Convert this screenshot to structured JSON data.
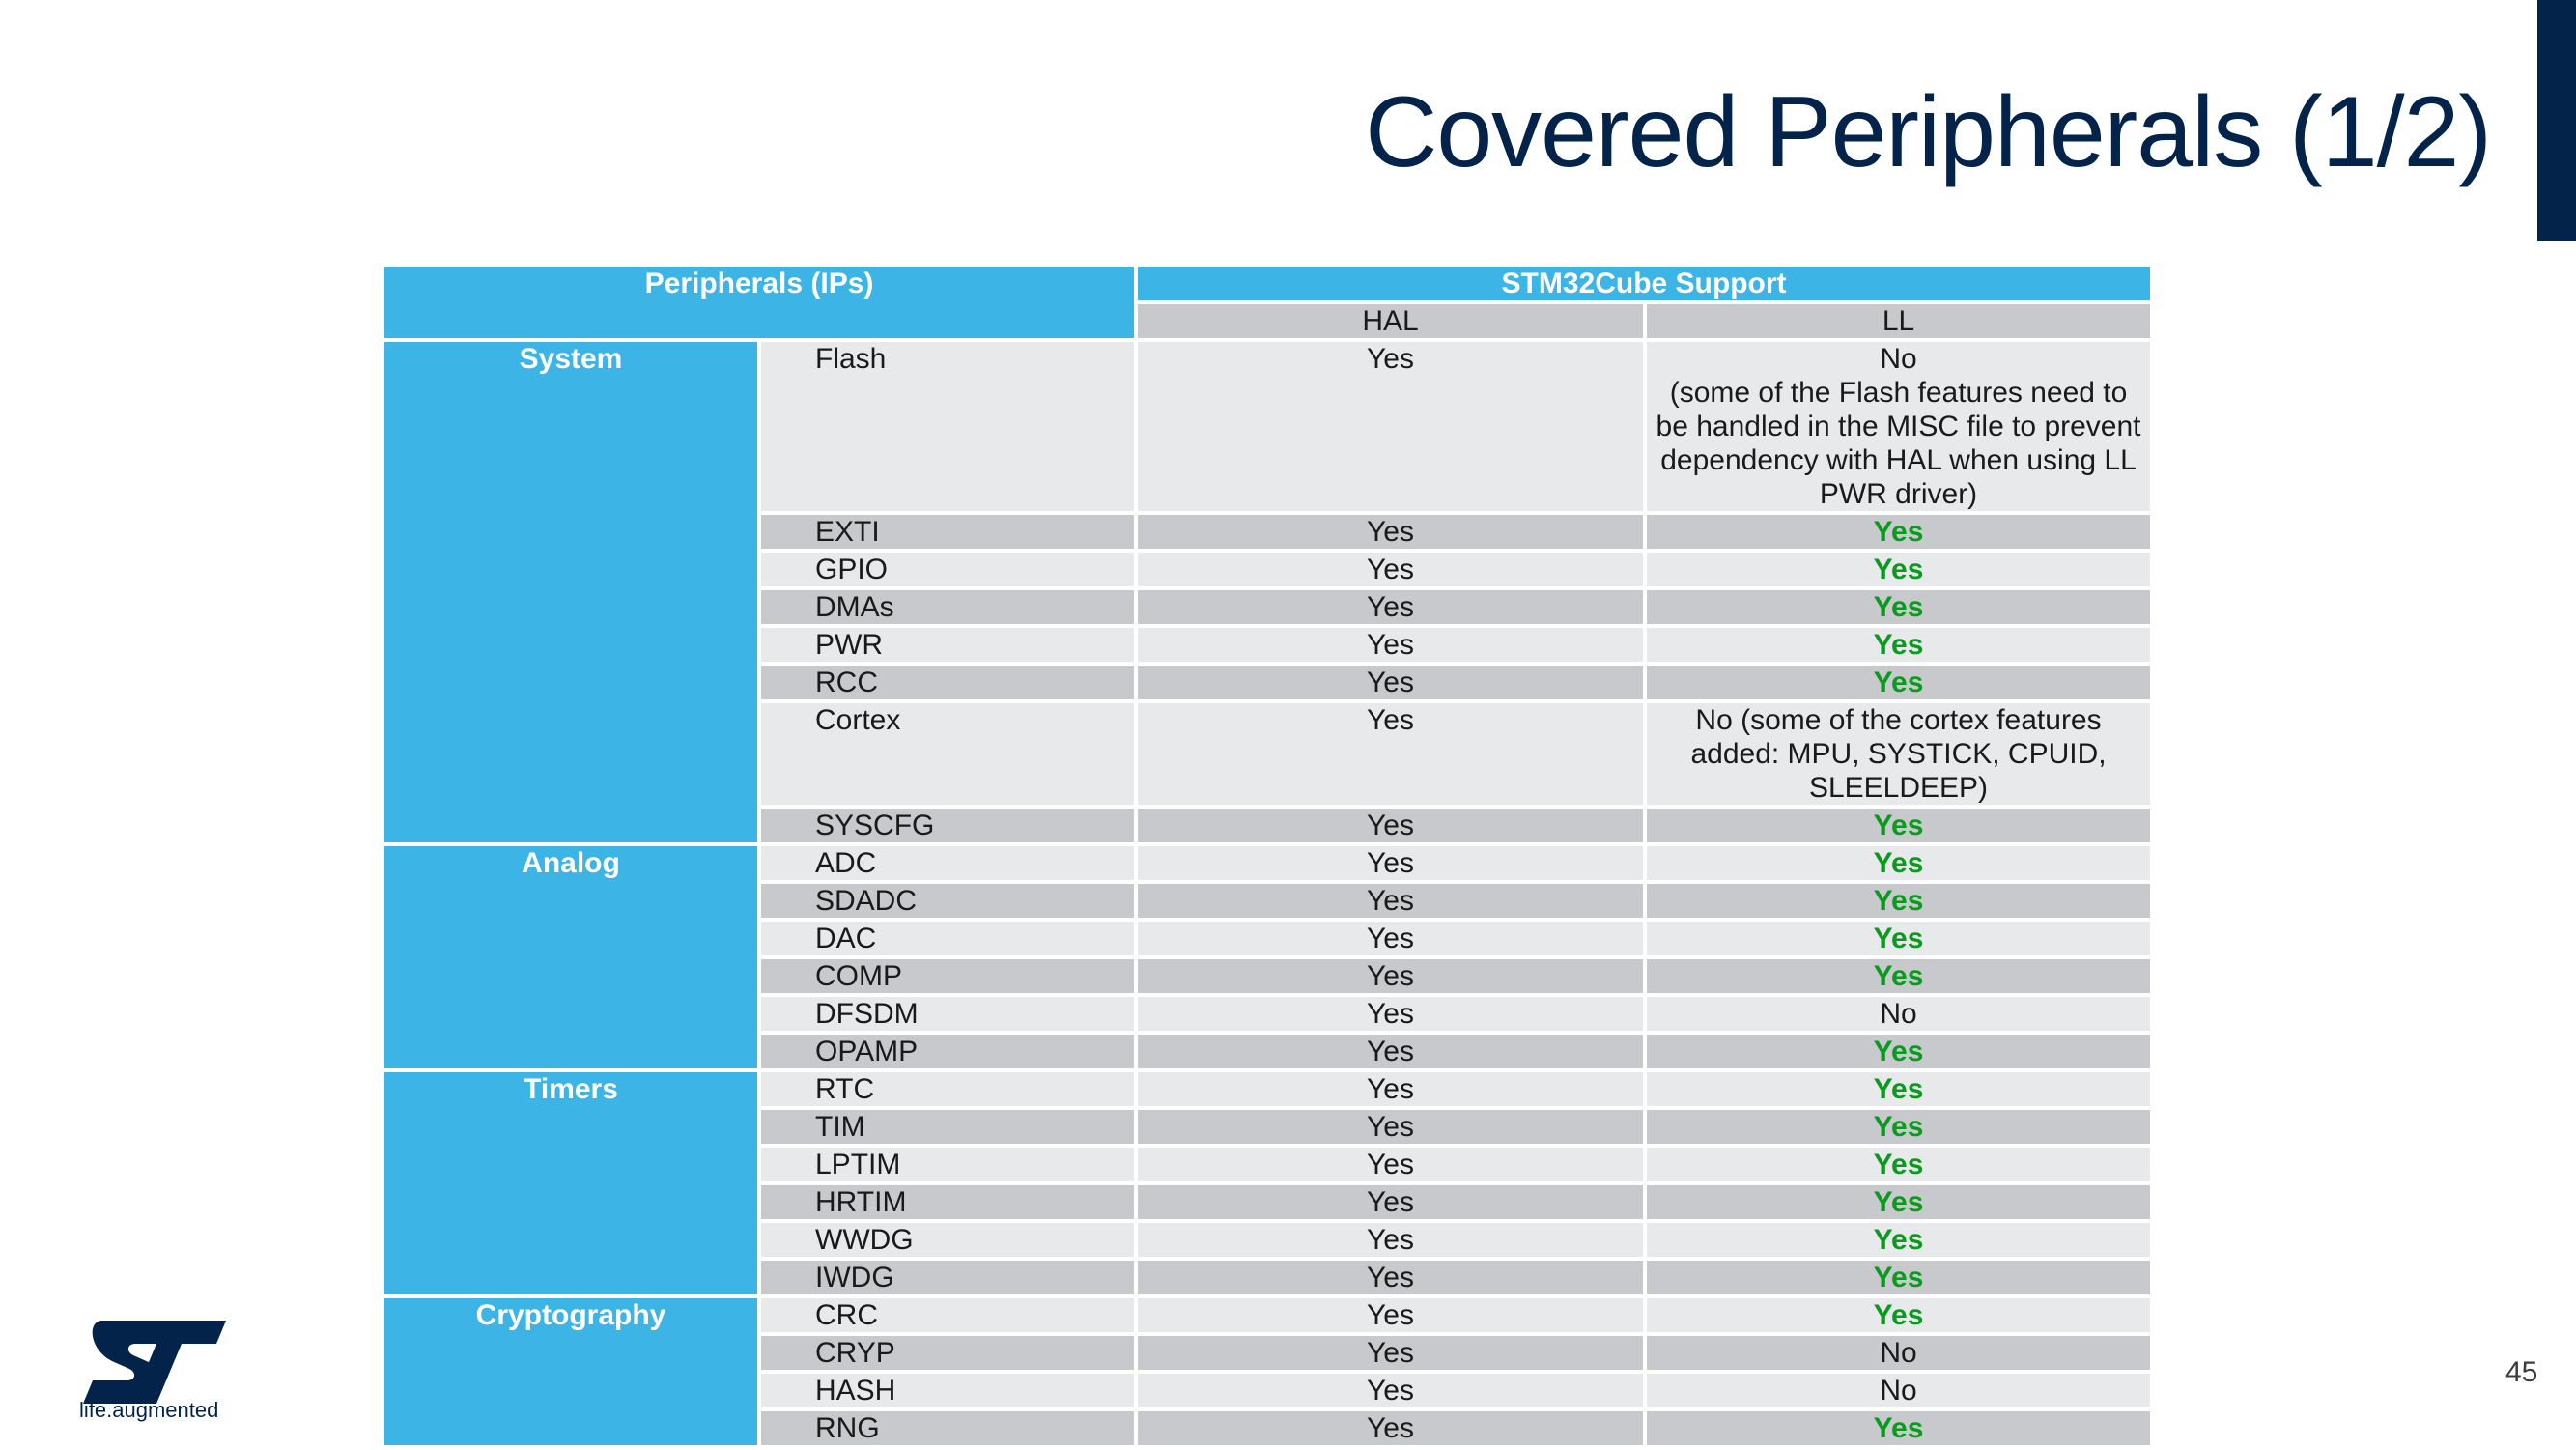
{
  "title": "Covered Peripherals (1/2)",
  "page_number": "45",
  "logo": {
    "brand": "ST",
    "tagline": "life.augmented"
  },
  "table": {
    "header_peripherals": "Peripherals (IPs)",
    "header_support": "STM32Cube Support",
    "header_hal": "HAL",
    "header_ll": "LL",
    "categories": [
      {
        "name": "System",
        "rows": [
          {
            "ip": "Flash",
            "hal": "Yes",
            "ll": "No\n(some of the Flash features need to be handled in the MISC file to prevent dependency with HAL when using LL PWR driver)",
            "ll_yes": false
          },
          {
            "ip": "EXTI",
            "hal": "Yes",
            "ll": "Yes",
            "ll_yes": true
          },
          {
            "ip": "GPIO",
            "hal": "Yes",
            "ll": "Yes",
            "ll_yes": true
          },
          {
            "ip": "DMAs",
            "hal": "Yes",
            "ll": "Yes",
            "ll_yes": true
          },
          {
            "ip": "PWR",
            "hal": "Yes",
            "ll": "Yes",
            "ll_yes": true
          },
          {
            "ip": "RCC",
            "hal": "Yes",
            "ll": "Yes",
            "ll_yes": true
          },
          {
            "ip": "Cortex",
            "hal": "Yes",
            "ll": "No (some of the cortex features added: MPU, SYSTICK, CPUID, SLEELDEEP)",
            "ll_yes": false
          },
          {
            "ip": "SYSCFG",
            "hal": "Yes",
            "ll": "Yes",
            "ll_yes": true
          }
        ]
      },
      {
        "name": "Analog",
        "rows": [
          {
            "ip": "ADC",
            "hal": "Yes",
            "ll": "Yes",
            "ll_yes": true
          },
          {
            "ip": "SDADC",
            "hal": "Yes",
            "ll": "Yes",
            "ll_yes": true
          },
          {
            "ip": "DAC",
            "hal": "Yes",
            "ll": "Yes",
            "ll_yes": true
          },
          {
            "ip": "COMP",
            "hal": "Yes",
            "ll": "Yes",
            "ll_yes": true
          },
          {
            "ip": "DFSDM",
            "hal": "Yes",
            "ll": "No",
            "ll_yes": false
          },
          {
            "ip": "OPAMP",
            "hal": "Yes",
            "ll": "Yes",
            "ll_yes": true
          }
        ]
      },
      {
        "name": "Timers",
        "rows": [
          {
            "ip": "RTC",
            "hal": "Yes",
            "ll": "Yes",
            "ll_yes": true
          },
          {
            "ip": "TIM",
            "hal": "Yes",
            "ll": "Yes",
            "ll_yes": true
          },
          {
            "ip": "LPTIM",
            "hal": "Yes",
            "ll": "Yes",
            "ll_yes": true
          },
          {
            "ip": "HRTIM",
            "hal": "Yes",
            "ll": "Yes",
            "ll_yes": true
          },
          {
            "ip": "WWDG",
            "hal": "Yes",
            "ll": "Yes",
            "ll_yes": true
          },
          {
            "ip": "IWDG",
            "hal": "Yes",
            "ll": "Yes",
            "ll_yes": true
          }
        ]
      },
      {
        "name": "Cryptography",
        "rows": [
          {
            "ip": "CRC",
            "hal": "Yes",
            "ll": "Yes",
            "ll_yes": true
          },
          {
            "ip": "CRYP",
            "hal": "Yes",
            "ll": "No",
            "ll_yes": false
          },
          {
            "ip": "HASH",
            "hal": "Yes",
            "ll": "No",
            "ll_yes": false
          },
          {
            "ip": "RNG",
            "hal": "Yes",
            "ll": "Yes",
            "ll_yes": true
          }
        ]
      }
    ]
  },
  "colors": {
    "title": "#03234b",
    "header_blue": "#3cb4e6",
    "row_light": "#e8e9eb",
    "row_dark": "#c8c9cc",
    "yes_green": "#0a9a1e"
  }
}
